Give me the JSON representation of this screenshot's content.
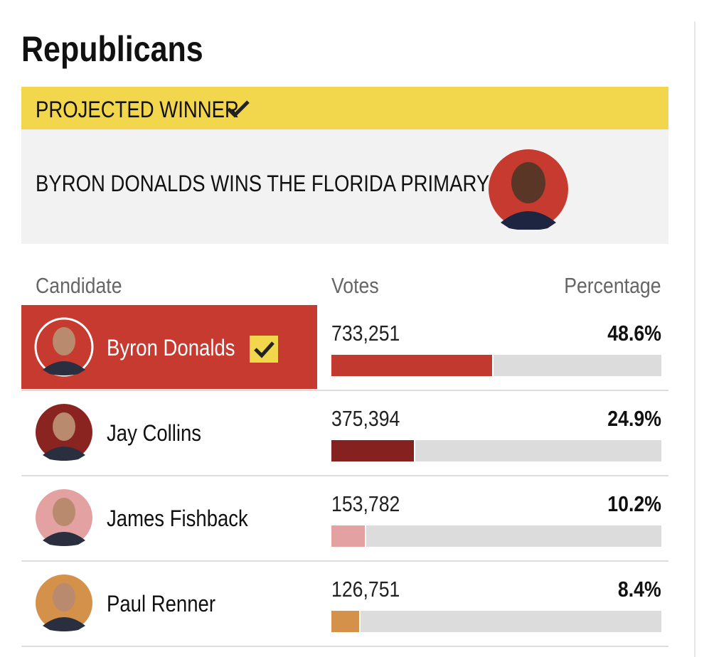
{
  "header": {
    "title": "Republicans"
  },
  "banner": {
    "label": "PROJECTED WINNER",
    "headline": "BYRON DONALDS WINS THE FLORIDA PRIMARY"
  },
  "table": {
    "columns": [
      "Candidate",
      "Votes",
      "Percentage"
    ],
    "rows": [
      {
        "name": "Byron Donalds",
        "votes": "733,251",
        "percentage": {
          "value": 48.6,
          "label": "48.6%"
        },
        "color": "#c1392f",
        "photo_bg": "#c63a30",
        "winner": true
      },
      {
        "name": "Jay Collins",
        "votes": "375,394",
        "percentage": {
          "value": 24.9,
          "label": "24.9%"
        },
        "color": "#85211f",
        "photo_bg": "#8a2420",
        "winner": false
      },
      {
        "name": "James Fishback",
        "votes": "153,782",
        "percentage": {
          "value": 10.2,
          "label": "10.2%"
        },
        "color": "#e3a1a1",
        "photo_bg": "#e3a1a1",
        "winner": false
      },
      {
        "name": "Paul Renner",
        "votes": "126,751",
        "percentage": {
          "value": 8.4,
          "label": "8.4%"
        },
        "color": "#d4914a",
        "photo_bg": "#d4914a",
        "winner": false
      }
    ]
  }
}
